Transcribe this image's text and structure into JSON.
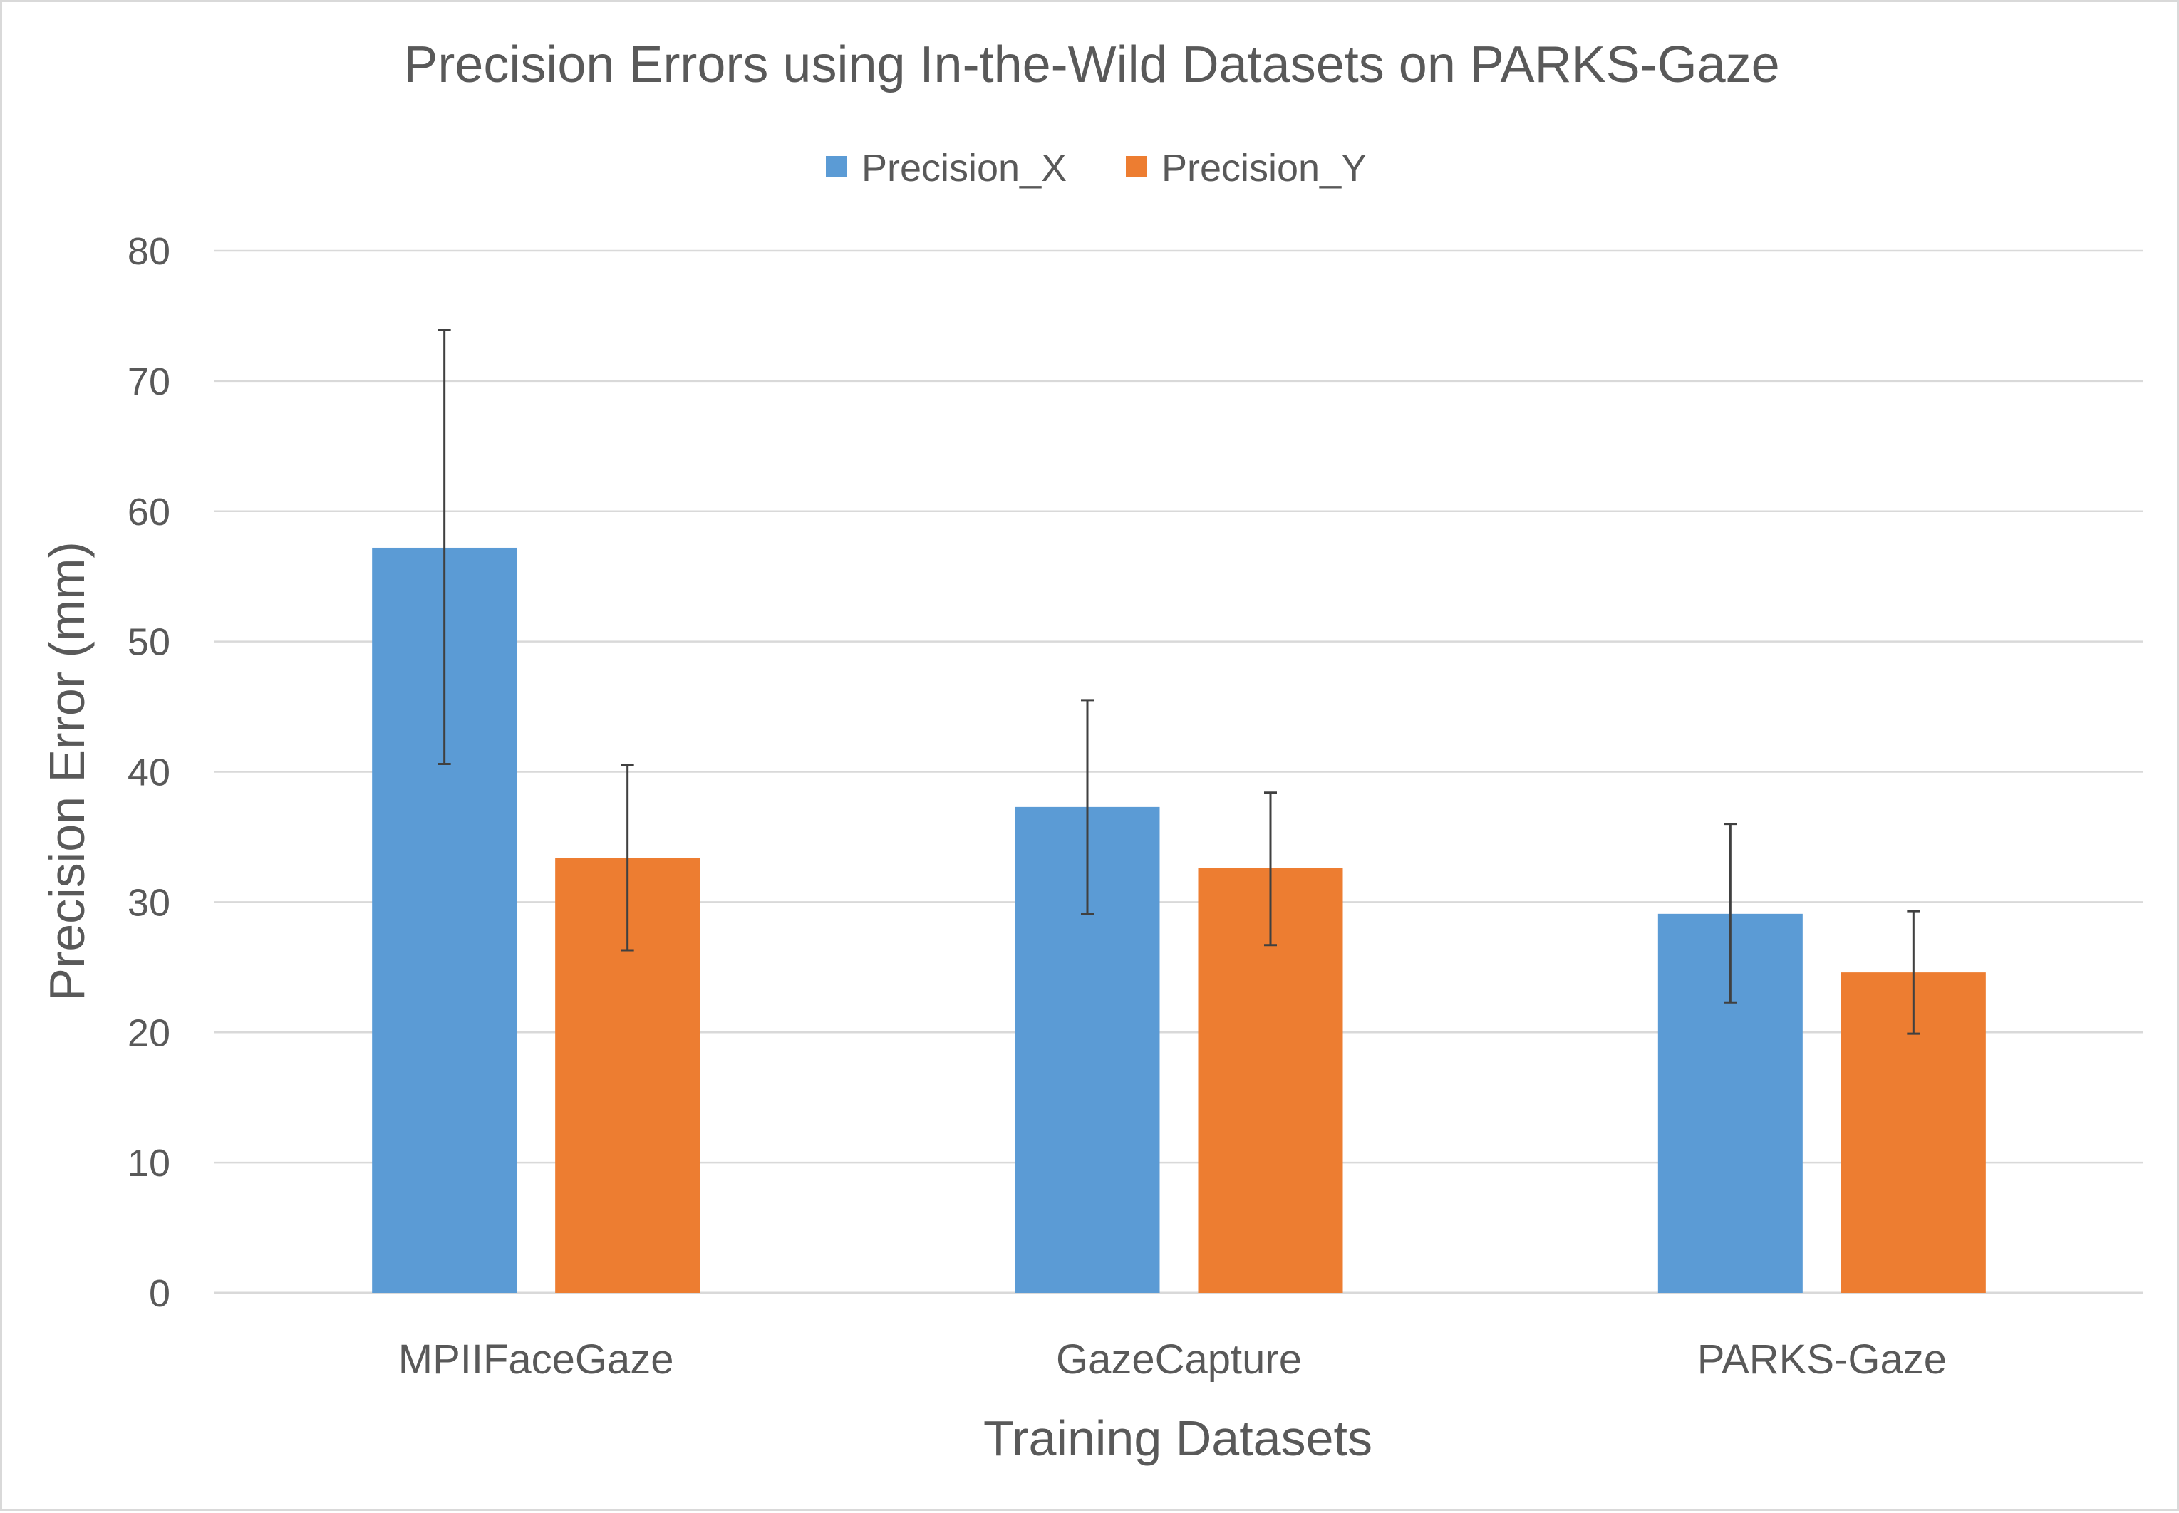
{
  "chart_data": {
    "type": "bar",
    "title": "Precision Errors using In-the-Wild Datasets on PARKS-Gaze",
    "xlabel": "Training Datasets",
    "ylabel": "Precision Error (mm)",
    "categories": [
      "MPIIFaceGaze",
      "GazeCapture",
      "PARKS-Gaze"
    ],
    "series": [
      {
        "name": "Precision_X",
        "color": "#5b9bd5",
        "values": [
          57.2,
          37.3,
          29.1
        ],
        "error_low": [
          40.6,
          29.1,
          22.3
        ],
        "error_high": [
          73.9,
          45.5,
          36.0
        ]
      },
      {
        "name": "Precision_Y",
        "color": "#ed7d31",
        "values": [
          33.4,
          32.6,
          24.6
        ],
        "error_low": [
          26.3,
          26.7,
          19.9
        ],
        "error_high": [
          40.5,
          38.4,
          29.3
        ]
      }
    ],
    "ylim": [
      0,
      80
    ],
    "yticks": [
      "0",
      "10",
      "20",
      "30",
      "40",
      "50",
      "60",
      "70",
      "80"
    ],
    "ytick_values": [
      0,
      10,
      20,
      30,
      40,
      50,
      60,
      70,
      80
    ],
    "grid": true,
    "legend_position": "top-center"
  }
}
